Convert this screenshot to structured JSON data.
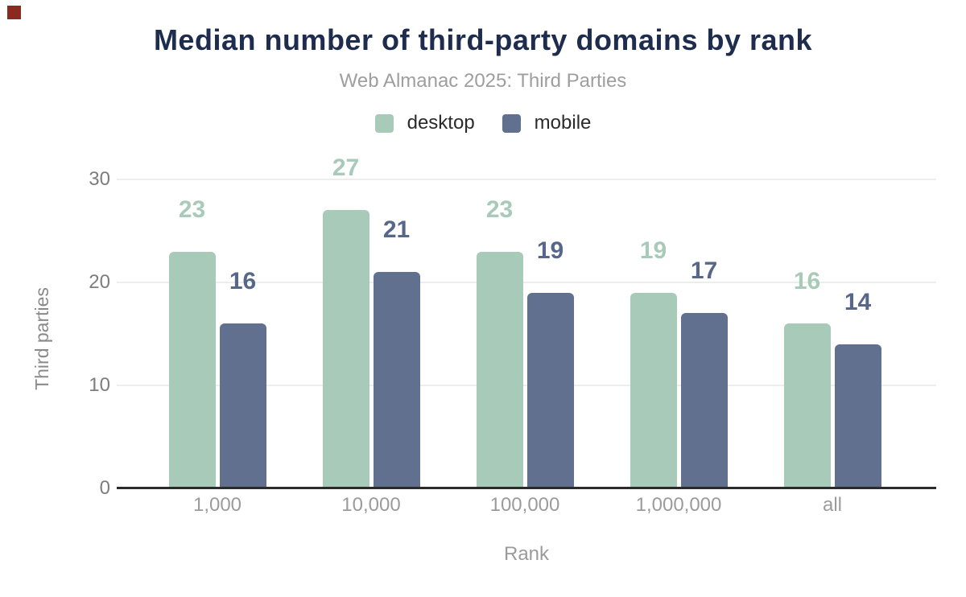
{
  "marker": {
    "name": "red-corner-square",
    "color": "#8b2a21"
  },
  "chart_data": {
    "type": "bar",
    "title": "Median number of third-party domains by rank",
    "subtitle": "Web Almanac 2025: Third Parties",
    "xlabel": "Rank",
    "ylabel": "Third parties",
    "categories": [
      "1,000",
      "10,000",
      "100,000",
      "1,000,000",
      "all"
    ],
    "series": [
      {
        "name": "desktop",
        "color": "#a8cab8",
        "label_color": "#a8cab8",
        "values": [
          23,
          27,
          23,
          19,
          16
        ]
      },
      {
        "name": "mobile",
        "color": "#60708e",
        "label_color": "#57678a",
        "values": [
          16,
          21,
          19,
          17,
          14
        ]
      }
    ],
    "ylim": [
      0,
      30
    ],
    "yticks": [
      0,
      10,
      20,
      30
    ],
    "grid": true,
    "legend_position": "top"
  },
  "colors": {
    "title": "#1e2c4e",
    "subtitle": "#9e9e9e",
    "axis_line": "#2b2b2b",
    "gridline": "#ededed",
    "y_tick_text": "#7d7d7d",
    "x_tick_text": "#9b9b9b",
    "y_axis_title_text": "#8a8a8a",
    "x_axis_title_text": "#9b9b9b",
    "legend_text": "#2b2b2b"
  }
}
